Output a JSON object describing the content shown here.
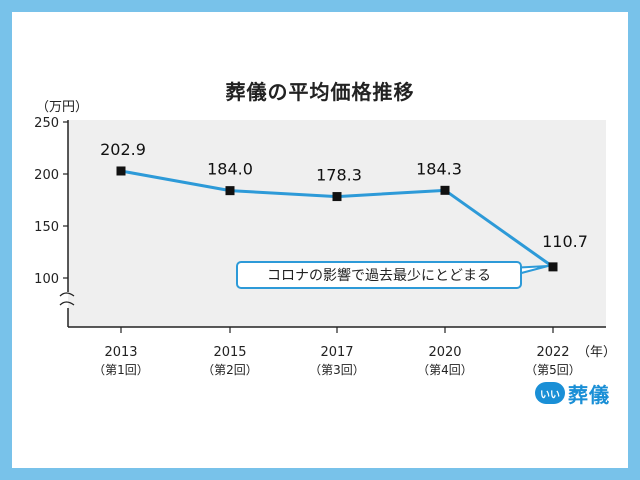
{
  "chart_data": {
    "type": "line",
    "title": "葬儀の平均価格推移",
    "unit": "（万円）",
    "x_unit": "（年）",
    "categories": [
      "2013",
      "2015",
      "2017",
      "2020",
      "2022"
    ],
    "sublabels": [
      "（第1回）",
      "（第2回）",
      "（第3回）",
      "（第4回）",
      "（第5回）"
    ],
    "values": [
      202.9,
      184.0,
      178.3,
      184.3,
      110.7
    ],
    "value_labels": [
      "202.9",
      "184.0",
      "178.3",
      "184.3",
      "110.7"
    ],
    "y_ticks": [
      100,
      150,
      200,
      250
    ],
    "ylim": [
      100,
      250
    ],
    "axis_break": true,
    "grid": false,
    "annotation": "コロナの影響で過去最少にとどまる",
    "line_color": "#2d9ad8",
    "marker_color": "#111111",
    "plot_bg": "#efefef"
  },
  "frame_color": "#78c2ea",
  "logo": {
    "badge_text": "いい",
    "text": "葬儀",
    "color": "#1a8fd6"
  }
}
